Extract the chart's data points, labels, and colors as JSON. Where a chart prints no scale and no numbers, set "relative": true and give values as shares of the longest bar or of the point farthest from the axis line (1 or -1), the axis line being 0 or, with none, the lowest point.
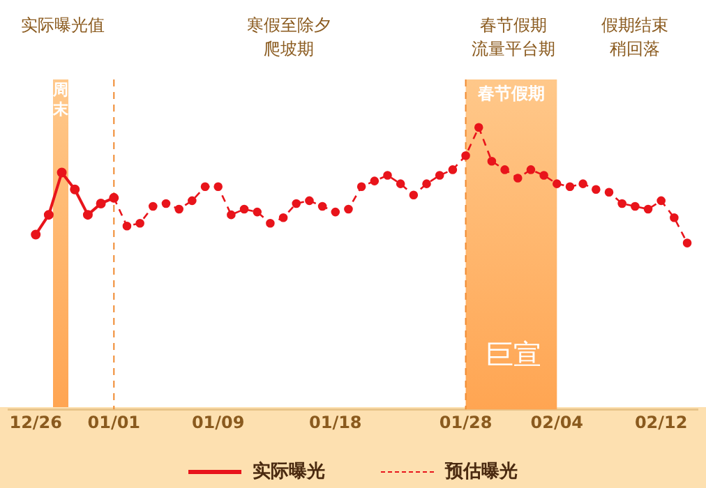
{
  "chart_data": {
    "type": "line",
    "relative": true,
    "categories": [
      "12/26",
      null,
      null,
      null,
      null,
      null,
      "01/01",
      null,
      null,
      null,
      null,
      null,
      null,
      null,
      "01/09",
      null,
      null,
      null,
      null,
      null,
      null,
      null,
      null,
      "01/18",
      null,
      null,
      null,
      null,
      null,
      null,
      null,
      null,
      null,
      "01/28",
      null,
      null,
      null,
      null,
      null,
      null,
      "02/04",
      null,
      null,
      null,
      null,
      null,
      null,
      null,
      "02/12",
      null,
      null
    ],
    "series": [
      {
        "name": "实际曝光",
        "color": "#e8141b",
        "line_style": "solid",
        "values": [
          0.62,
          0.69,
          0.84,
          0.78,
          0.69,
          0.73,
          0.75,
          null,
          null,
          null,
          null,
          null,
          null,
          null,
          null,
          null,
          null,
          null,
          null,
          null,
          null,
          null,
          null,
          null,
          null,
          null,
          null,
          null,
          null,
          null,
          null,
          null,
          null,
          null,
          null,
          null,
          null,
          null,
          null,
          null,
          null,
          null,
          null,
          null,
          null,
          null,
          null,
          null,
          null,
          null,
          null
        ]
      },
      {
        "name": "预估曝光",
        "color": "#e8141b",
        "line_style": "dashed",
        "values": [
          null,
          null,
          null,
          null,
          null,
          null,
          0.75,
          0.65,
          0.66,
          0.72,
          0.73,
          0.71,
          0.74,
          0.79,
          0.79,
          0.69,
          0.71,
          0.7,
          0.66,
          0.68,
          0.73,
          0.74,
          0.72,
          0.7,
          0.71,
          0.79,
          0.81,
          0.83,
          0.8,
          0.76,
          0.8,
          0.83,
          0.85,
          0.9,
          1,
          0.88,
          0.85,
          0.82,
          0.85,
          0.83,
          0.8,
          0.79,
          0.8,
          0.78,
          0.77,
          0.73,
          0.72,
          0.71,
          0.74,
          0.68,
          0.59
        ]
      }
    ],
    "marker": "circle",
    "grid": false,
    "legend": "bottom",
    "ref_lines": [
      {
        "axis": "x",
        "value": "01/01",
        "label": null,
        "color": "#f08a30",
        "line_style": "dashed"
      },
      {
        "axis": "x",
        "value": "01/28",
        "label": null,
        "color": "#f08a30",
        "line_style": "dashed"
      }
    ],
    "bands": [
      {
        "axis": "x",
        "from": "01/28",
        "to": "02/04",
        "label": "春节假期",
        "color": "#ffa552"
      }
    ],
    "annotations": [
      "实际曝光值",
      "寒假至除夕爬坡期",
      "春节假期流量平台期",
      "假期结束稍回落",
      "巨宣",
      "周末"
    ]
  }
}
